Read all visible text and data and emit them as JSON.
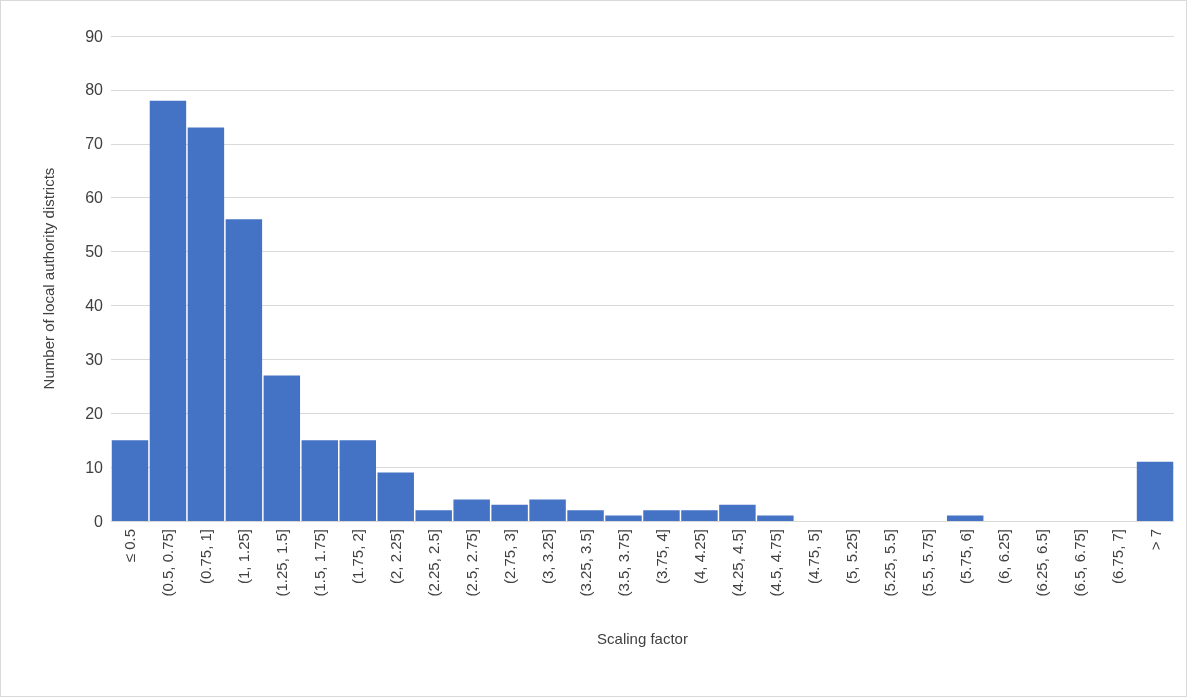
{
  "chart_data": {
    "type": "bar",
    "xlabel": "Scaling factor",
    "ylabel": "Number of local authority districts",
    "categories": [
      "≤ 0.5",
      "(0.5, 0.75]",
      "(0.75, 1]",
      "(1, 1.25]",
      "(1.25, 1.5]",
      "(1.5, 1.75]",
      "(1.75, 2]",
      "(2, 2.25]",
      "(2.25, 2.5]",
      "(2.5, 2.75]",
      "(2.75, 3]",
      "(3, 3.25]",
      "(3.25, 3.5]",
      "(3.5, 3.75]",
      "(3.75, 4]",
      "(4, 4.25]",
      "(4.25, 4.5]",
      "(4.5, 4.75]",
      "(4.75, 5]",
      "(5, 5.25]",
      "(5.25, 5.5]",
      "(5.5, 5.75]",
      "(5.75, 6]",
      "(6, 6.25]",
      "(6.25, 6.5]",
      "(6.5, 6.75]",
      "(6.75, 7]",
      "> 7"
    ],
    "values": [
      15,
      78,
      73,
      56,
      27,
      15,
      15,
      9,
      2,
      4,
      3,
      4,
      2,
      1,
      2,
      2,
      3,
      1,
      0,
      0,
      0,
      0,
      1,
      0,
      0,
      0,
      0,
      11
    ],
    "color": "#4472c4",
    "ylim": [
      0,
      90
    ],
    "yticks": [
      0,
      10,
      20,
      30,
      40,
      50,
      60,
      70,
      80,
      90
    ],
    "grid": "y"
  }
}
